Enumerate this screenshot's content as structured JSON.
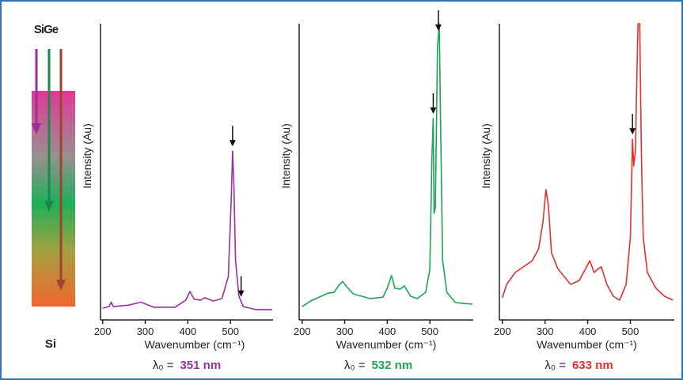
{
  "diagram": {
    "top_label": "SiGe",
    "bottom_label": "Si"
  },
  "chart_data": [
    {
      "type": "line",
      "x_label": "Wavenumber (cm⁻¹)",
      "y_label": "Intensity (Au)",
      "laser_label": "λ₀ =",
      "laser_wavelength": "351  nm",
      "color": "#9b2f9e",
      "xlim": [
        195,
        600
      ],
      "ylim": [
        0,
        100
      ],
      "xticks": [
        200,
        300,
        400,
        500
      ],
      "x": [
        200,
        215,
        220,
        225,
        260,
        290,
        320,
        370,
        395,
        405,
        415,
        430,
        440,
        460,
        480,
        495,
        502,
        505,
        508,
        512,
        520,
        530,
        560,
        598
      ],
      "values": [
        4,
        4.5,
        6,
        4.5,
        5,
        6,
        4.3,
        4.3,
        6.7,
        9.6,
        7,
        6.7,
        7.5,
        6.4,
        7.2,
        14.7,
        41,
        57,
        46,
        20,
        8,
        4.5,
        3.5,
        3.5
      ],
      "arrows": [
        505,
        525
      ]
    },
    {
      "type": "line",
      "x_label": "Wavenumber (cm⁻¹)",
      "y_label": "Intensity (Au)",
      "laser_label": "λ₀ =",
      "laser_wavelength": "532  nm",
      "color": "#1aa652",
      "xlim": [
        193,
        602
      ],
      "ylim": [
        0,
        100
      ],
      "xticks": [
        200,
        300,
        400,
        500
      ],
      "x": [
        200,
        220,
        240,
        260,
        275,
        285,
        295,
        305,
        320,
        360,
        390,
        400,
        410,
        418,
        430,
        440,
        455,
        470,
        490,
        500,
        505,
        508,
        510,
        513,
        518,
        522,
        525,
        530,
        540,
        560,
        600
      ],
      "values": [
        4.5,
        6.4,
        7.7,
        9,
        9.3,
        11.5,
        13,
        11.2,
        8.8,
        7.2,
        7.7,
        10.7,
        15,
        10.7,
        10.4,
        11.5,
        8,
        7.2,
        9.3,
        17,
        55,
        68,
        36,
        38,
        92,
        100,
        68,
        20,
        9.3,
        5.9,
        5.3
      ],
      "arrows": [
        508,
        520
      ]
    },
    {
      "type": "line",
      "x_label": "Wavenumber (cm⁻¹)",
      "y_label": "Intensity (Au)",
      "laser_label": "λ₀ =",
      "laser_wavelength": "633  nm",
      "color": "#e3302d",
      "xlim": [
        193,
        603
      ],
      "ylim": [
        0,
        100
      ],
      "xticks": [
        200,
        300,
        400,
        500
      ],
      "x": [
        200,
        210,
        230,
        250,
        270,
        285,
        295,
        302,
        308,
        315,
        330,
        360,
        380,
        395,
        405,
        415,
        425,
        432,
        445,
        460,
        475,
        490,
        500,
        505,
        508,
        512,
        515,
        518,
        522,
        526,
        530,
        540,
        560,
        580,
        600
      ],
      "values": [
        7.5,
        12,
        16,
        18,
        20,
        24,
        33,
        44,
        38.5,
        22.7,
        17.3,
        12,
        13.3,
        17.3,
        20,
        16,
        17.3,
        17.9,
        12,
        8,
        6.7,
        12,
        28,
        61,
        52,
        57,
        81,
        100,
        100,
        55,
        28,
        16,
        10.7,
        8,
        6.7
      ],
      "arrows": [
        505
      ]
    }
  ]
}
